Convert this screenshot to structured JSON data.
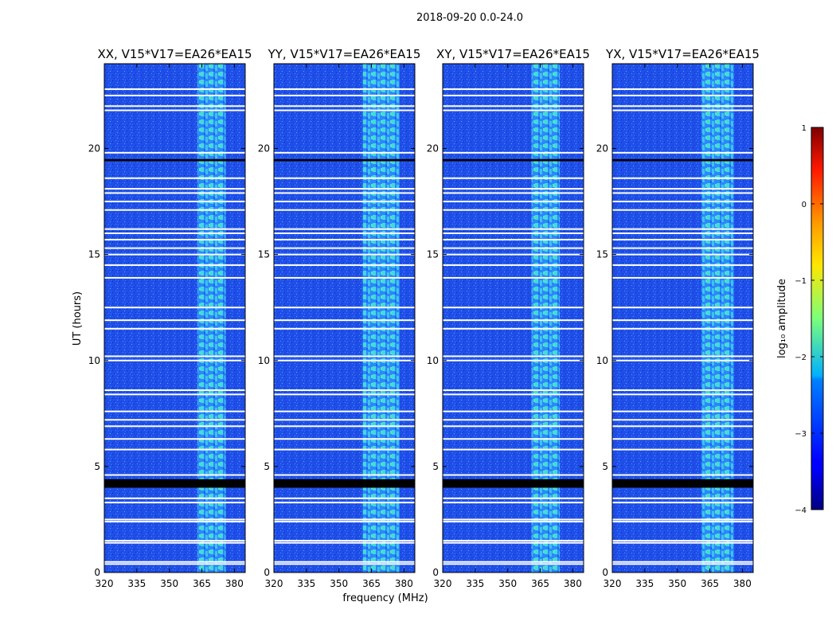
{
  "chart_data": {
    "type": "heatmap",
    "suptitle": "2018-09-20 0.0-24.0",
    "xlabel": "frequency (MHz)",
    "ylabel": "UT (hours)",
    "xlim": [
      320,
      385
    ],
    "ylim": [
      0,
      24
    ],
    "x_ticks": [
      320,
      335,
      350,
      365,
      380
    ],
    "y_ticks": [
      0,
      5,
      10,
      15,
      20
    ],
    "panels": [
      {
        "title": "XX, V15*V17=EA26*EA15",
        "strong_band": [
          363,
          376
        ]
      },
      {
        "title": "YY, V15*V17=EA26*EA15",
        "strong_band": [
          361,
          378
        ]
      },
      {
        "title": "XY, V15*V17=EA26*EA15",
        "strong_band": [
          361,
          374
        ]
      },
      {
        "title": "YX, V15*V17=EA26*EA15",
        "strong_band": [
          361,
          376
        ]
      }
    ],
    "flagged_hours_white": [
      0.4,
      0.5,
      1.4,
      1.5,
      2.4,
      2.5,
      3.3,
      3.5,
      4.6,
      5.8,
      6.3,
      6.9,
      7.2,
      7.6,
      8.4,
      8.6,
      10.0,
      10.2,
      11.5,
      11.9,
      12.5,
      13.9,
      14.5,
      15.0,
      15.3,
      15.7,
      16.0,
      16.2,
      17.1,
      17.5,
      17.9,
      18.1,
      18.6,
      19.8,
      21.8,
      22.0,
      22.5,
      22.8
    ],
    "no_data_hours_black": [
      [
        4.0,
        4.4
      ],
      [
        19.4,
        19.5
      ]
    ],
    "colorbar": {
      "label": "log₁₀ amplitude",
      "min": -4,
      "max": 1,
      "ticks": [
        1,
        0,
        -1,
        -2,
        -3,
        -4
      ],
      "tick_labels": [
        "1",
        "0",
        "−1",
        "−2",
        "−3",
        "−4"
      ]
    }
  }
}
